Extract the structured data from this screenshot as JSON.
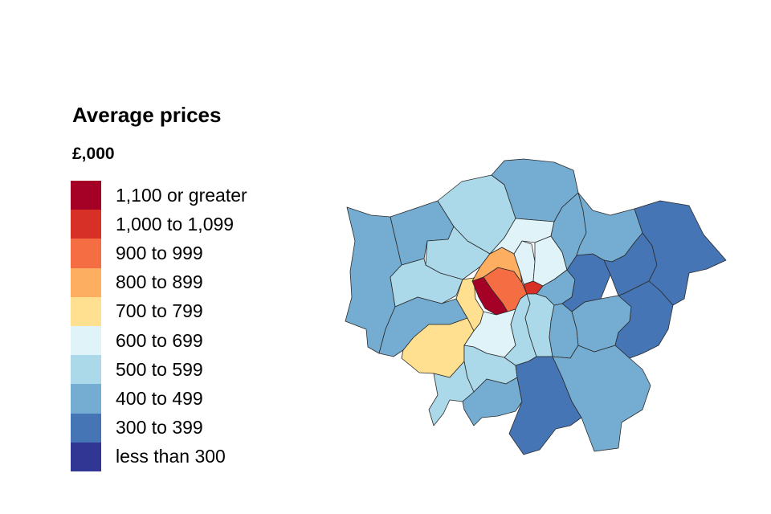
{
  "legend": {
    "title": "Average prices",
    "unit": "£,000",
    "items": [
      {
        "label": "1,100 or greater",
        "color": "#a50026"
      },
      {
        "label": "1,000 to 1,099",
        "color": "#d73027"
      },
      {
        "label": "900 to 999",
        "color": "#f46d43"
      },
      {
        "label": "800 to 899",
        "color": "#fdae61"
      },
      {
        "label": "700 to 799",
        "color": "#fee090"
      },
      {
        "label": "600 to 699",
        "color": "#e0f3f8"
      },
      {
        "label": "500 to 599",
        "color": "#abd9e9"
      },
      {
        "label": "400 to 499",
        "color": "#74add1"
      },
      {
        "label": "300 to 399",
        "color": "#4575b4"
      },
      {
        "label": "less than 300",
        "color": "#313695"
      }
    ]
  },
  "map": {
    "region": "London boroughs",
    "boroughs": [
      {
        "id": "barnet",
        "band": 6
      },
      {
        "id": "enfield",
        "band": 7
      },
      {
        "id": "harrow",
        "band": 7
      },
      {
        "id": "hillingdon",
        "band": 7
      },
      {
        "id": "brent",
        "band": 6
      },
      {
        "id": "ealing",
        "band": 6
      },
      {
        "id": "hounslow",
        "band": 7
      },
      {
        "id": "richmond",
        "band": 4
      },
      {
        "id": "kingston",
        "band": 6
      },
      {
        "id": "hammersmith",
        "band": 4
      },
      {
        "id": "kensington-chelsea",
        "band": 0
      },
      {
        "id": "westminster",
        "band": 2
      },
      {
        "id": "city",
        "band": 1
      },
      {
        "id": "camden",
        "band": 3
      },
      {
        "id": "islington",
        "band": 5
      },
      {
        "id": "haringey",
        "band": 5
      },
      {
        "id": "hackney",
        "band": 5
      },
      {
        "id": "wandsworth",
        "band": 5
      },
      {
        "id": "merton",
        "band": 6
      },
      {
        "id": "sutton",
        "band": 7
      },
      {
        "id": "lambeth",
        "band": 6
      },
      {
        "id": "southwark",
        "band": 6
      },
      {
        "id": "croydon",
        "band": 8
      },
      {
        "id": "lewisham",
        "band": 7
      },
      {
        "id": "bromley",
        "band": 7
      },
      {
        "id": "greenwich",
        "band": 7
      },
      {
        "id": "tower-hamlets",
        "band": 7
      },
      {
        "id": "newham",
        "band": 8
      },
      {
        "id": "waltham-forest",
        "band": 7
      },
      {
        "id": "redbridge",
        "band": 7
      },
      {
        "id": "barking-dagenham",
        "band": 8
      },
      {
        "id": "havering",
        "band": 8
      },
      {
        "id": "bexley",
        "band": 8
      }
    ]
  }
}
